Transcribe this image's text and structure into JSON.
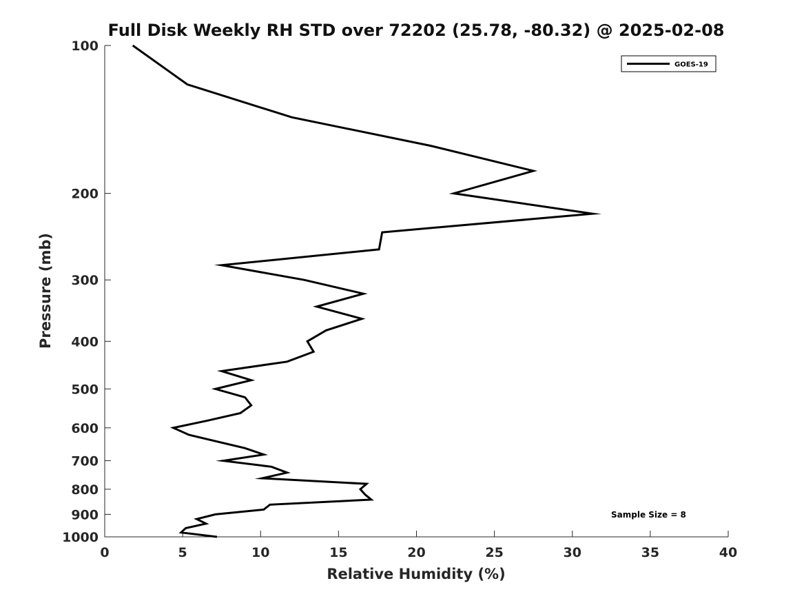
{
  "chart_data": {
    "type": "line",
    "title": "Full Disk Weekly RH STD over 72202 (25.78, -80.32) @ 2025-02-08",
    "xlabel": "Relative Humidity (%)",
    "ylabel": "Pressure (mb)",
    "xlim": [
      0,
      40
    ],
    "ylim": [
      100,
      1000
    ],
    "yscale": "log",
    "y_reversed": true,
    "grid": false,
    "x_ticks": [
      0,
      5,
      10,
      15,
      20,
      25,
      30,
      35,
      40
    ],
    "x_tick_labels": [
      "0",
      "5",
      "10",
      "15",
      "20",
      "25",
      "30",
      "35",
      "40"
    ],
    "y_ticks": [
      100,
      200,
      300,
      400,
      500,
      600,
      700,
      800,
      900,
      1000
    ],
    "y_tick_labels": [
      "100",
      "200",
      "300",
      "400",
      "500",
      "600",
      "700",
      "800",
      "900",
      "1000"
    ],
    "legend": {
      "position": "top-right",
      "entries": [
        "GOES-19"
      ]
    },
    "annotation": "Sample Size = 8",
    "series": [
      {
        "name": "GOES-19",
        "color": "#000000",
        "x": [
          1.8,
          5.3,
          12.0,
          20.9,
          27.5,
          22.4,
          31.3,
          17.8,
          17.6,
          7.5,
          12.8,
          16.6,
          13.6,
          16.5,
          14.2,
          13.0,
          13.4,
          11.7,
          7.5,
          9.4,
          7.1,
          9.0,
          9.4,
          8.7,
          6.6,
          4.4,
          5.4,
          9.0,
          10.2,
          7.6,
          10.7,
          11.7,
          10.1,
          16.8,
          16.4,
          16.7,
          17.1,
          10.6,
          10.2,
          7.1,
          5.9,
          6.5,
          5.2,
          4.9,
          7.2
        ],
        "y": [
          100,
          120,
          140,
          160,
          180,
          200,
          220,
          240,
          260,
          280,
          300,
          320,
          340,
          360,
          380,
          400,
          420,
          440,
          460,
          480,
          500,
          520,
          540,
          560,
          580,
          600,
          620,
          660,
          680,
          700,
          720,
          740,
          760,
          780,
          800,
          820,
          840,
          860,
          880,
          900,
          920,
          940,
          960,
          980,
          1000
        ]
      }
    ]
  }
}
